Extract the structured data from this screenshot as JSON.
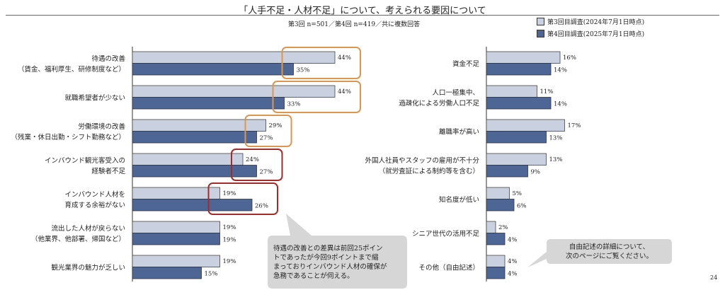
{
  "header": {
    "title": "「人手不足・人材不足」について、考えられる要因について",
    "subtitle": "第3回 n=501／第4回 n=419／共に複数回答",
    "page_number": "24"
  },
  "chart_data": {
    "type": "bar",
    "orientation": "horizontal",
    "title": "「人手不足・人材不足」について、考えられる要因について",
    "unit": "%",
    "legend_placement": "top-right",
    "series": [
      {
        "name": "第3回目調査(2024年7月1日時点)",
        "color": "#c9d1e0"
      },
      {
        "name": "第4回目調査(2025年7月1日時点)",
        "color": "#4e6696"
      }
    ],
    "panels": [
      {
        "categories": [
          [
            "待遇の改善",
            "（賃金、福利厚生、研修制度など）"
          ],
          [
            "就職希望者が少ない"
          ],
          [
            "労働環境の改善",
            "（残業・休日出勤・シフト勤務など）"
          ],
          [
            "インバウンド観光客受入の",
            "経験者不足"
          ],
          [
            "インバウンド人材を",
            "育成する余裕がない"
          ],
          [
            "流出した人材が戻らない",
            "（他業界、他部署、帰国など）"
          ],
          [
            "観光業界の魅力が乏しい"
          ]
        ],
        "values3": [
          44,
          44,
          29,
          24,
          19,
          19,
          19
        ],
        "values4": [
          35,
          33,
          27,
          27,
          26,
          19,
          15
        ],
        "highlight": [
          "orange",
          "orange",
          "orange",
          "red",
          "red",
          null,
          null
        ]
      },
      {
        "categories": [
          [
            "資金不足"
          ],
          [
            "人口一極集中、",
            "過疎化による労働人口不足"
          ],
          [
            "離職率が高い"
          ],
          [
            "外国人社員やスタッフの雇用が不十分",
            "（就労査証による制約等を含む）"
          ],
          [
            "知名度が低い"
          ],
          [
            "シニア世代の活用不足"
          ],
          [
            "その他（自由記述）"
          ]
        ],
        "values3": [
          16,
          11,
          17,
          13,
          5,
          2,
          4
        ],
        "values4": [
          14,
          14,
          13,
          9,
          6,
          4,
          4
        ],
        "highlight": [
          null,
          null,
          null,
          null,
          null,
          null,
          null
        ]
      }
    ]
  },
  "callouts": {
    "left": [
      "待遇の改善との差異は前回25ポイン",
      "トであったが今回9ポイントまで縮",
      "まっておりインバウンド人材の確保が",
      "急務であることが伺える。"
    ],
    "right": [
      "自由記述の詳細について、",
      "次のページにご覧ください。"
    ]
  },
  "colors": {
    "orange": "#e0954f",
    "red": "#a52a2a",
    "callout_bg": "#d6d6d6"
  }
}
